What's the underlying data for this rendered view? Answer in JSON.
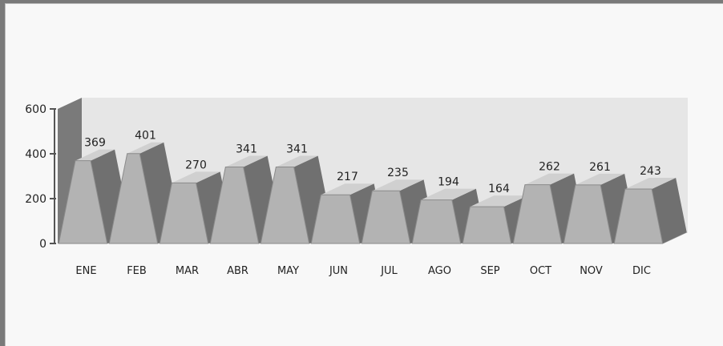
{
  "chart_data": {
    "type": "bar",
    "style": "3d-pyramid",
    "categories": [
      "ENE",
      "FEB",
      "MAR",
      "ABR",
      "MAY",
      "JUN",
      "JUL",
      "AGO",
      "SEP",
      "OCT",
      "NOV",
      "DIC"
    ],
    "values": [
      369,
      401,
      270,
      341,
      341,
      217,
      235,
      194,
      164,
      262,
      261,
      243
    ],
    "ylim": [
      0,
      600
    ],
    "yticks": [
      0,
      200,
      400,
      600
    ],
    "grid": false,
    "colors": {
      "bar_front": "#b3b3b3",
      "bar_side": "#707070",
      "bar_top": "#d0d0d0",
      "back_wall": "#e6e6e6",
      "side_wall": "#7a7a7a",
      "floor": "#a0a0a0",
      "frame": "#7a7a7a"
    }
  }
}
